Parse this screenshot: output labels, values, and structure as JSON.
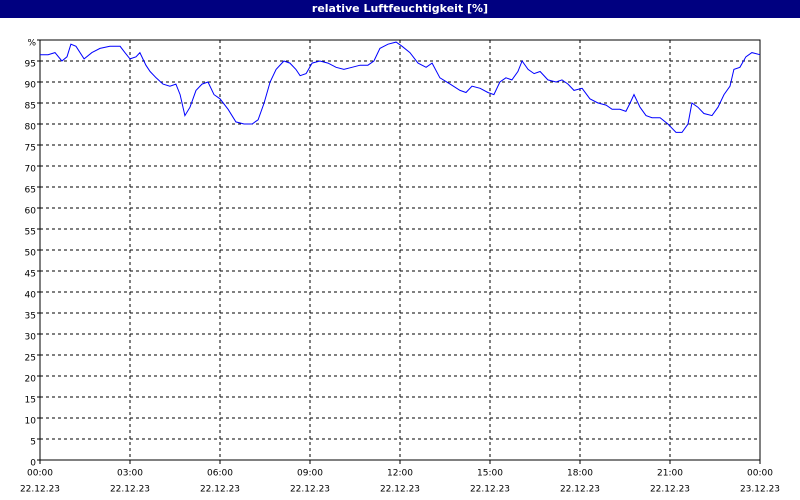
{
  "chart_data": {
    "type": "line",
    "title": "relative Luftfeuchtigkeit [%]",
    "x": [
      0,
      0.27,
      0.5,
      0.73,
      0.9,
      1.03,
      1.2,
      1.47,
      1.73,
      2,
      2.33,
      2.67,
      2.83,
      3,
      3.2,
      3.33,
      3.53,
      3.67,
      3.87,
      4.1,
      4.33,
      4.53,
      4.67,
      4.83,
      5,
      5.2,
      5.4,
      5.6,
      5.8,
      6,
      6.27,
      6.53,
      6.8,
      7.07,
      7.27,
      7.47,
      7.67,
      7.87,
      8.13,
      8.33,
      8.53,
      8.67,
      8.87,
      9.07,
      9.33,
      9.6,
      9.87,
      10.13,
      10.4,
      10.67,
      10.93,
      11.13,
      11.33,
      11.6,
      11.87,
      12.07,
      12.33,
      12.6,
      12.87,
      13.07,
      13.33,
      13.67,
      14,
      14.2,
      14.4,
      14.67,
      14.93,
      15.13,
      15.33,
      15.53,
      15.73,
      15.93,
      16.07,
      16.27,
      16.47,
      16.67,
      16.93,
      17.2,
      17.4,
      17.6,
      17.8,
      18.07,
      18.33,
      18.6,
      18.87,
      19.07,
      19.33,
      19.53,
      19.67,
      19.8,
      20,
      20.2,
      20.4,
      20.67,
      20.93,
      21.2,
      21.4,
      21.6,
      21.73,
      21.93,
      22.13,
      22.4,
      22.6,
      22.8,
      23,
      23.13,
      23.33,
      23.53,
      23.73,
      24
    ],
    "series": [
      {
        "name": "relative Luftfeuchtigkeit",
        "color": "#0000ff",
        "values": [
          96.5,
          96.5,
          97,
          95,
          96,
          99,
          98.5,
          95.5,
          97,
          98,
          98.5,
          98.5,
          97,
          95.5,
          96,
          97,
          94,
          92.5,
          91,
          89.5,
          89,
          89.5,
          87,
          82,
          84,
          88,
          89.5,
          90,
          87,
          86,
          83.5,
          80.5,
          80,
          80,
          81,
          85,
          90,
          93,
          95,
          94.5,
          93,
          91.5,
          92,
          94.5,
          95,
          94.5,
          93.5,
          93,
          93.5,
          94,
          94,
          95,
          98,
          99,
          99.5,
          98.5,
          97,
          94.5,
          93.5,
          94.5,
          91,
          89.5,
          88,
          87.5,
          89,
          88.5,
          87.5,
          87,
          90,
          91,
          90.5,
          92.5,
          95,
          93,
          92,
          92.5,
          90.5,
          90,
          90.5,
          89.5,
          88,
          88.5,
          86,
          85,
          84.5,
          83.5,
          83.5,
          83,
          85,
          87,
          84,
          82,
          81.5,
          81.5,
          80,
          78,
          78,
          80,
          85,
          84,
          82.5,
          82,
          84,
          87,
          89,
          93,
          93.5,
          96,
          97,
          96.5
        ]
      }
    ],
    "xlim": [
      0,
      24
    ],
    "xticks": [
      {
        "value": 0,
        "label": "00:00"
      },
      {
        "value": 3,
        "label": "03:00"
      },
      {
        "value": 6,
        "label": "06:00"
      },
      {
        "value": 9,
        "label": "09:00"
      },
      {
        "value": 12,
        "label": "12:00"
      },
      {
        "value": 15,
        "label": "15:00"
      },
      {
        "value": 18,
        "label": "18:00"
      },
      {
        "value": 21,
        "label": "21:00"
      },
      {
        "value": 24,
        "label": "00:00"
      }
    ],
    "xtick_dates": [
      "22.12.23",
      "22.12.23",
      "22.12.23",
      "22.12.23",
      "22.12.23",
      "22.12.23",
      "22.12.23",
      "22.12.23",
      "23.12.23"
    ],
    "ylim": [
      0,
      100
    ],
    "yticks": [
      0,
      5,
      10,
      15,
      20,
      25,
      30,
      35,
      40,
      45,
      50,
      55,
      60,
      65,
      70,
      75,
      80,
      85,
      90,
      95,
      {
        "value": 100,
        "label": "%"
      }
    ],
    "grid": true
  }
}
